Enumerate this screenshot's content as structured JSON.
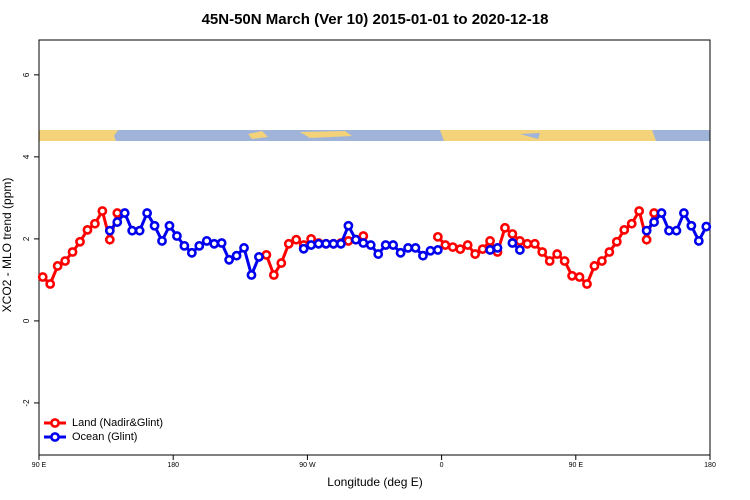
{
  "chart_data": {
    "type": "line",
    "title": "45N-50N March (Ver 10)   2015-01-01 to 2020-12-18",
    "x_label": "Longitude (deg E)",
    "y_label": "XCO2 - MLO trend (ppm)",
    "xlim": [
      90,
      540
    ],
    "xticks": [
      {
        "value": 90,
        "label": "90 E"
      },
      {
        "value": 180,
        "label": "180"
      },
      {
        "value": 270,
        "label": "90 W"
      },
      {
        "value": 360,
        "label": "0"
      },
      {
        "value": 450,
        "label": "90 E"
      },
      {
        "value": 540,
        "label": "180"
      }
    ],
    "ylim": [
      -3.27,
      6.85
    ],
    "yticks": [
      -2,
      0,
      2,
      4,
      6
    ],
    "legend": "bottom-left",
    "series": [
      {
        "name": "Land (Nadir&Glint)",
        "color": "#ff0000",
        "x": [
          92.5,
          97.5,
          102.5,
          107.5,
          112.5,
          117.5,
          122.5,
          127.5,
          132.5,
          137.5,
          142.5,
          147.5,
          242.5,
          247.5,
          252.5,
          257.5,
          262.5,
          267.5,
          272.5,
          277.5,
          282.5,
          287.5,
          292.5,
          297.5,
          302.5,
          307.5,
          312.5,
          357.5,
          362.5,
          367.5,
          372.5,
          377.5,
          382.5,
          387.5,
          392.5,
          397.5,
          402.5,
          407.5,
          412.5,
          417.5,
          422.5,
          427.5,
          432.5,
          437.5,
          442.5,
          447.5,
          452.5,
          457.5,
          462.5,
          467.5,
          472.5,
          477.5,
          482.5,
          487.5,
          492.5,
          497.5,
          502.5
        ],
        "values": [
          1.07,
          0.9,
          1.34,
          1.46,
          1.68,
          1.93,
          2.22,
          2.37,
          2.68,
          1.98,
          2.63,
          null,
          1.61,
          1.12,
          1.41,
          1.88,
          1.98,
          1.85,
          2.0,
          1.9,
          1.88,
          1.88,
          1.9,
          1.95,
          1.98,
          2.07,
          null,
          2.05,
          1.85,
          1.8,
          1.75,
          1.85,
          1.63,
          1.75,
          1.95,
          1.68,
          2.27,
          2.12,
          1.95,
          1.88,
          1.88,
          1.68,
          1.46,
          1.63,
          1.46,
          1.1,
          1.07,
          0.9,
          1.34,
          1.46,
          1.68,
          1.93,
          2.22,
          2.37,
          2.68,
          1.98,
          2.63
        ]
      },
      {
        "name": "Ocean (Glint)",
        "color": "#0000ee",
        "x": [
          137.5,
          142.5,
          147.5,
          152.5,
          157.5,
          162.5,
          167.5,
          172.5,
          177.5,
          182.5,
          187.5,
          192.5,
          197.5,
          202.5,
          207.5,
          212.5,
          217.5,
          222.5,
          227.5,
          232.5,
          237.5,
          242.5,
          267.5,
          272.5,
          277.5,
          282.5,
          287.5,
          292.5,
          297.5,
          302.5,
          307.5,
          312.5,
          317.5,
          322.5,
          327.5,
          332.5,
          337.5,
          342.5,
          347.5,
          352.5,
          357.5,
          362.5,
          392.5,
          397.5,
          402.5,
          407.5,
          412.5,
          417.5,
          497.5,
          502.5,
          507.5,
          512.5,
          517.5,
          522.5,
          527.5,
          532.5,
          537.5
        ],
        "values": [
          2.2,
          2.41,
          2.63,
          2.2,
          2.2,
          2.63,
          2.32,
          1.95,
          2.32,
          2.07,
          1.83,
          1.66,
          1.83,
          1.95,
          1.88,
          1.9,
          1.49,
          1.59,
          1.78,
          1.12,
          1.56,
          null,
          1.76,
          1.85,
          1.88,
          1.88,
          1.88,
          1.88,
          2.32,
          1.98,
          1.9,
          1.85,
          1.63,
          1.85,
          1.85,
          1.66,
          1.78,
          1.78,
          1.59,
          1.71,
          1.73,
          null,
          1.73,
          1.78,
          null,
          1.9,
          1.73,
          null,
          2.2,
          2.41,
          2.63,
          2.2,
          2.2,
          2.63,
          2.32,
          1.95,
          2.3
        ]
      }
    ]
  }
}
